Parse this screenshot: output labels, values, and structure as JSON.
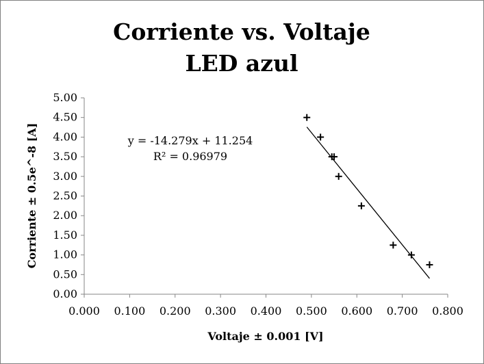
{
  "chart_data": {
    "type": "scatter",
    "title_lines": [
      "Corriente vs. Voltaje",
      "LED azul"
    ],
    "xlabel": "Voltaje ± 0.001 [V]",
    "ylabel": "Corriente ± 0.5e^-8 [A]",
    "xlim": [
      0,
      0.8
    ],
    "ylim": [
      0,
      5
    ],
    "x_ticks": [
      "0.000",
      "0.100",
      "0.200",
      "0.300",
      "0.400",
      "0.500",
      "0.600",
      "0.700",
      "0.800"
    ],
    "y_ticks": [
      "0.00",
      "0.50",
      "1.00",
      "1.50",
      "2.00",
      "2.50",
      "3.00",
      "3.50",
      "4.00",
      "4.50",
      "5.00"
    ],
    "grid": false,
    "points": [
      {
        "x": 0.49,
        "y": 4.5
      },
      {
        "x": 0.52,
        "y": 4.0
      },
      {
        "x": 0.545,
        "y": 3.5
      },
      {
        "x": 0.55,
        "y": 3.5
      },
      {
        "x": 0.56,
        "y": 3.0
      },
      {
        "x": 0.61,
        "y": 2.25
      },
      {
        "x": 0.68,
        "y": 1.25
      },
      {
        "x": 0.72,
        "y": 1.0
      },
      {
        "x": 0.76,
        "y": 0.75
      }
    ],
    "trendline": {
      "slope": -14.279,
      "intercept": 11.254,
      "x_range": [
        0.49,
        0.76
      ],
      "equation_text": "y = -14.279x + 11.254",
      "r2_text": "R² = 0.96979"
    },
    "colors": {
      "marker": "#000000",
      "axis": "#868686",
      "line": "#000000"
    }
  }
}
